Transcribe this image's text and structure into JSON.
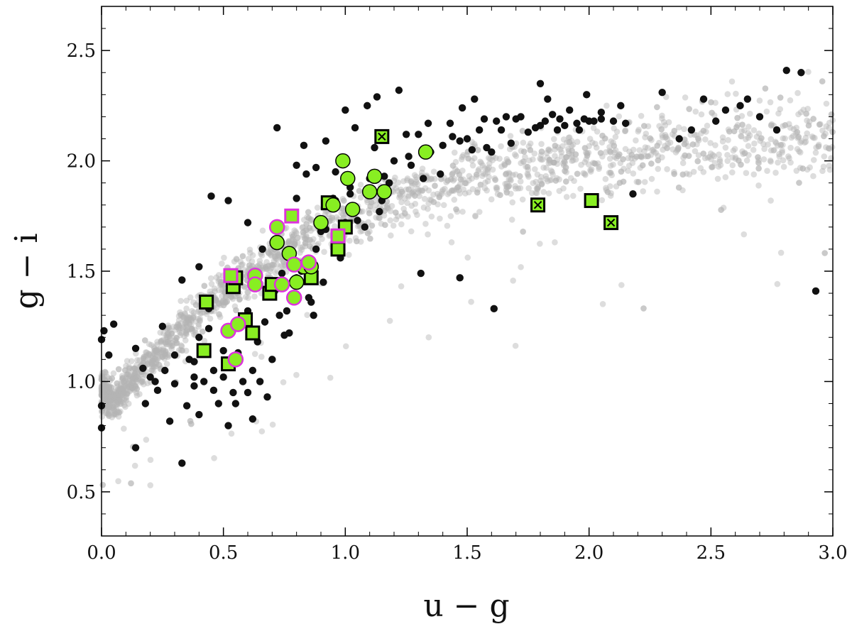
{
  "chart_data": {
    "type": "scatter",
    "xlabel": "u − g",
    "ylabel": "g − i",
    "xlim": [
      0.0,
      3.0
    ],
    "ylim": [
      0.3,
      2.7
    ],
    "xticks": [
      0.0,
      0.5,
      1.0,
      1.5,
      2.0,
      2.5,
      3.0
    ],
    "yticks": [
      0.5,
      1.0,
      1.5,
      2.0,
      2.5
    ],
    "xtick_labels": [
      "0.0",
      "0.5",
      "1.0",
      "1.5",
      "2.0",
      "2.5",
      "3.0"
    ],
    "ytick_labels": [
      "0.5",
      "1.0",
      "1.5",
      "2.0",
      "2.5"
    ],
    "grid": false,
    "colors": {
      "background_points": "#b4b4b4",
      "dark_points": "#111111",
      "highlight_fill": "#88ee22",
      "highlight_edge_black": "#000000",
      "highlight_edge_magenta": "#dd33dd"
    },
    "series": [
      {
        "marker": "circle-dark",
        "points": [
          [
            0.0,
            1.19
          ],
          [
            0.01,
            1.23
          ],
          [
            0.0,
            0.89
          ],
          [
            0.0,
            0.79
          ],
          [
            0.05,
            1.26
          ],
          [
            0.03,
            1.12
          ],
          [
            0.14,
            0.7
          ],
          [
            0.17,
            1.06
          ],
          [
            0.14,
            1.15
          ],
          [
            0.18,
            0.9
          ],
          [
            0.2,
            1.02
          ],
          [
            0.22,
            1.0
          ],
          [
            0.23,
            0.96
          ],
          [
            0.25,
            1.25
          ],
          [
            0.26,
            1.05
          ],
          [
            0.28,
            0.82
          ],
          [
            0.3,
            0.99
          ],
          [
            0.3,
            1.12
          ],
          [
            0.33,
            1.46
          ],
          [
            0.33,
            0.63
          ],
          [
            0.35,
            0.89
          ],
          [
            0.36,
            1.1
          ],
          [
            0.38,
            0.98
          ],
          [
            0.38,
            1.02
          ],
          [
            0.4,
            1.2
          ],
          [
            0.4,
            0.85
          ],
          [
            0.42,
            1.0
          ],
          [
            0.44,
            1.33
          ],
          [
            0.44,
            1.24
          ],
          [
            0.46,
            0.96
          ],
          [
            0.46,
            1.05
          ],
          [
            0.48,
            0.9
          ],
          [
            0.5,
            1.02
          ],
          [
            0.5,
            1.14
          ],
          [
            0.52,
            0.8
          ],
          [
            0.54,
            0.95
          ],
          [
            0.55,
            0.9
          ],
          [
            0.56,
            1.13
          ],
          [
            0.58,
            1.0
          ],
          [
            0.6,
            0.95
          ],
          [
            0.6,
            1.32
          ],
          [
            0.62,
            1.05
          ],
          [
            0.62,
            0.83
          ],
          [
            0.64,
            1.18
          ],
          [
            0.65,
            1.0
          ],
          [
            0.67,
            1.27
          ],
          [
            0.68,
            0.93
          ],
          [
            0.7,
            1.1
          ],
          [
            0.71,
            1.41
          ],
          [
            0.73,
            1.3
          ],
          [
            0.74,
            1.49
          ],
          [
            0.75,
            1.21
          ],
          [
            0.76,
            1.32
          ],
          [
            0.79,
            1.44
          ],
          [
            0.8,
            1.47
          ],
          [
            0.82,
            1.5
          ],
          [
            0.85,
            1.38
          ],
          [
            0.87,
            1.3
          ],
          [
            0.88,
            1.6
          ],
          [
            0.9,
            1.68
          ],
          [
            0.91,
            1.45
          ],
          [
            0.92,
            1.69
          ],
          [
            0.95,
            1.83
          ],
          [
            0.96,
            1.82
          ],
          [
            0.98,
            1.56
          ],
          [
            1.0,
            1.72
          ],
          [
            1.02,
            1.85
          ],
          [
            1.05,
            1.73
          ],
          [
            1.08,
            1.7
          ],
          [
            1.1,
            1.92
          ],
          [
            1.12,
            2.06
          ],
          [
            1.14,
            1.77
          ],
          [
            1.15,
            1.82
          ],
          [
            1.16,
            1.93
          ],
          [
            1.18,
            1.9
          ],
          [
            1.2,
            2.0
          ],
          [
            1.22,
            2.32
          ],
          [
            1.26,
            2.02
          ],
          [
            1.3,
            2.12
          ],
          [
            1.32,
            1.92
          ],
          [
            1.35,
            2.04
          ],
          [
            1.4,
            2.07
          ],
          [
            1.44,
            2.11
          ],
          [
            1.47,
            2.09
          ],
          [
            1.5,
            2.1
          ],
          [
            1.52,
            2.05
          ],
          [
            1.55,
            2.14
          ],
          [
            1.58,
            2.06
          ],
          [
            1.6,
            2.04
          ],
          [
            1.62,
            2.18
          ],
          [
            1.66,
            2.2
          ],
          [
            1.7,
            2.19
          ],
          [
            1.72,
            2.2
          ],
          [
            1.75,
            2.13
          ],
          [
            1.78,
            2.15
          ],
          [
            1.8,
            2.16
          ],
          [
            1.82,
            2.18
          ],
          [
            1.85,
            2.21
          ],
          [
            1.88,
            2.19
          ],
          [
            1.9,
            2.16
          ],
          [
            1.92,
            2.23
          ],
          [
            1.95,
            2.17
          ],
          [
            1.96,
            2.14
          ],
          [
            1.98,
            2.19
          ],
          [
            2.0,
            2.18
          ],
          [
            2.02,
            2.18
          ],
          [
            2.05,
            2.19
          ],
          [
            2.1,
            2.18
          ],
          [
            2.15,
            2.17
          ],
          [
            2.18,
            1.85
          ],
          [
            2.3,
            2.31
          ],
          [
            2.37,
            2.1
          ],
          [
            2.42,
            2.14
          ],
          [
            2.47,
            2.28
          ],
          [
            2.52,
            2.18
          ],
          [
            2.56,
            2.23
          ],
          [
            2.62,
            2.25
          ],
          [
            2.65,
            2.28
          ],
          [
            2.7,
            2.2
          ],
          [
            2.77,
            2.14
          ],
          [
            2.81,
            2.41
          ],
          [
            2.87,
            2.4
          ],
          [
            2.93,
            1.41
          ],
          [
            1.61,
            1.33
          ],
          [
            1.47,
            1.47
          ],
          [
            1.31,
            1.49
          ],
          [
            0.38,
            1.09
          ],
          [
            0.4,
            1.52
          ],
          [
            0.45,
            1.84
          ],
          [
            0.52,
            1.82
          ],
          [
            0.86,
            1.36
          ],
          [
            0.77,
            1.22
          ],
          [
            1.04,
            2.15
          ],
          [
            1.0,
            2.23
          ],
          [
            1.13,
            2.29
          ],
          [
            1.09,
            2.25
          ],
          [
            0.92,
            2.09
          ],
          [
            0.88,
            1.97
          ],
          [
            0.83,
            2.07
          ],
          [
            0.8,
            1.98
          ],
          [
            0.84,
            1.94
          ],
          [
            0.72,
            2.15
          ],
          [
            0.8,
            1.83
          ],
          [
            0.66,
            1.6
          ],
          [
            0.6,
            1.72
          ],
          [
            1.25,
            2.12
          ],
          [
            1.34,
            2.17
          ],
          [
            1.39,
            1.94
          ],
          [
            1.48,
            2.24
          ],
          [
            1.53,
            2.28
          ],
          [
            1.57,
            2.19
          ],
          [
            1.8,
            2.35
          ],
          [
            1.83,
            2.28
          ],
          [
            1.87,
            2.14
          ],
          [
            1.99,
            2.3
          ],
          [
            2.05,
            2.22
          ],
          [
            2.13,
            2.25
          ],
          [
            1.64,
            2.14
          ],
          [
            1.68,
            2.08
          ],
          [
            1.43,
            2.17
          ],
          [
            1.27,
            1.98
          ],
          [
            1.18,
            1.9
          ],
          [
            0.96,
            1.95
          ],
          [
            1.02,
            1.88
          ]
        ]
      },
      {
        "marker": "square-black-edge",
        "points": [
          [
            0.43,
            1.36
          ],
          [
            0.42,
            1.14
          ],
          [
            0.52,
            1.08
          ],
          [
            0.54,
            1.43
          ],
          [
            0.55,
            1.47
          ],
          [
            0.59,
            1.28
          ],
          [
            0.62,
            1.22
          ],
          [
            0.69,
            1.4
          ],
          [
            0.7,
            1.44
          ],
          [
            0.86,
            1.47
          ],
          [
            0.93,
            1.81
          ],
          [
            0.97,
            1.6
          ],
          [
            1.0,
            1.7
          ],
          [
            2.01,
            1.82
          ]
        ]
      },
      {
        "marker": "square-crossed",
        "points": [
          [
            1.15,
            2.11
          ],
          [
            1.79,
            1.8
          ],
          [
            2.09,
            1.72
          ]
        ]
      },
      {
        "marker": "square-magenta-edge",
        "points": [
          [
            0.53,
            1.48
          ],
          [
            0.78,
            1.75
          ],
          [
            0.97,
            1.66
          ]
        ]
      },
      {
        "marker": "circle-black-edge",
        "points": [
          [
            0.72,
            1.63
          ],
          [
            0.77,
            1.58
          ],
          [
            0.8,
            1.45
          ],
          [
            0.83,
            1.52
          ],
          [
            0.86,
            1.52
          ],
          [
            0.9,
            1.72
          ],
          [
            0.95,
            1.8
          ],
          [
            0.99,
            2.0
          ],
          [
            1.01,
            1.92
          ],
          [
            1.03,
            1.78
          ],
          [
            1.12,
            1.93
          ],
          [
            1.1,
            1.86
          ],
          [
            1.16,
            1.86
          ],
          [
            1.33,
            2.04
          ]
        ]
      },
      {
        "marker": "circle-magenta-edge",
        "points": [
          [
            0.52,
            1.23
          ],
          [
            0.55,
            1.1
          ],
          [
            0.56,
            1.26
          ],
          [
            0.63,
            1.48
          ],
          [
            0.63,
            1.44
          ],
          [
            0.72,
            1.7
          ],
          [
            0.74,
            1.44
          ],
          [
            0.79,
            1.53
          ],
          [
            0.79,
            1.38
          ],
          [
            0.85,
            1.54
          ]
        ]
      }
    ]
  }
}
